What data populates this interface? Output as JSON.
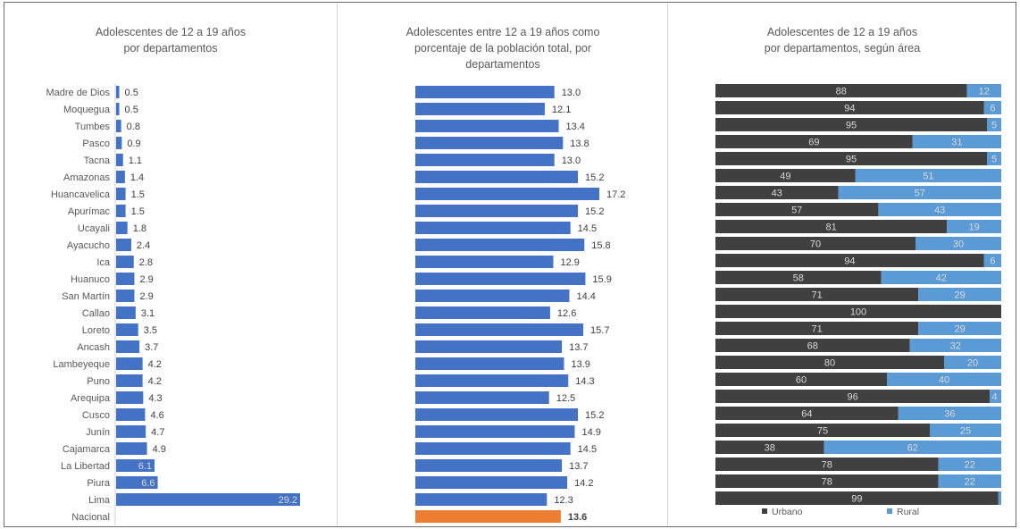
{
  "chart_data": [
    {
      "type": "bar",
      "orientation": "horizontal",
      "title": "Adolescentes de 12 a 19 años\npor departamentos",
      "categories": [
        "Madre de Dios",
        "Moquegua",
        "Tumbes",
        "Pasco",
        "Tacna",
        "Amazonas",
        "Huancavelica",
        "Apurímac",
        "Ucayali",
        "Ayacucho",
        "Ica",
        "Huanuco",
        "San Martín",
        "Callao",
        "Loreto",
        "Ancash",
        "Lambeyeque",
        "Puno",
        "Arequipa",
        "Cusco",
        "Junín",
        "Cajamarca",
        "La Libertad",
        "Piura",
        "Lima",
        "Nacional"
      ],
      "values": [
        0.5,
        0.5,
        0.8,
        0.9,
        1.1,
        1.4,
        1.5,
        1.5,
        1.8,
        2.4,
        2.8,
        2.9,
        2.9,
        3.1,
        3.5,
        3.7,
        4.2,
        4.2,
        4.3,
        4.6,
        4.7,
        4.9,
        6.1,
        6.6,
        29.2,
        null
      ],
      "labels": [
        "0.5",
        "0.5",
        "0.8",
        "0.9",
        "1.1",
        "1.4",
        "1.5",
        "1.5",
        "1.8",
        "2.4",
        "2.8",
        "2.9",
        "2.9",
        "3.1",
        "3.5",
        "3.7",
        "4.2",
        "4.2",
        "4.3",
        "4.6",
        "4.7",
        "4.9",
        "6.1",
        "6.6",
        "29.2",
        ""
      ],
      "xlim": [
        0,
        29.2
      ],
      "colors": {
        "bar": "#4472c4"
      },
      "grid": false
    },
    {
      "type": "bar",
      "orientation": "horizontal",
      "title": "Adolescentes entre 12 a 19 años como\nporcentaje de la población total, por\ndepartamentos",
      "values": [
        13.0,
        12.1,
        13.4,
        13.8,
        13.0,
        15.2,
        17.2,
        15.2,
        14.5,
        15.8,
        12.9,
        15.9,
        14.4,
        12.6,
        15.7,
        13.7,
        13.9,
        14.3,
        12.5,
        15.2,
        14.9,
        14.5,
        13.7,
        14.2,
        12.3,
        13.6
      ],
      "labels": [
        "13.0",
        "12.1",
        "13.4",
        "13.8",
        "13.0",
        "15.2",
        "17.2",
        "15.2",
        "14.5",
        "15.8",
        "12.9",
        "15.9",
        "14.4",
        "12.6",
        "15.7",
        "13.7",
        "13.9",
        "14.3",
        "12.5",
        "15.2",
        "14.9",
        "14.5",
        "13.7",
        "14.2",
        "12.3",
        "13.6"
      ],
      "highlight_index": 25,
      "xlim": [
        0,
        17.2
      ],
      "colors": {
        "bar": "#4472c4",
        "highlight": "#ed7d31"
      },
      "grid": false
    },
    {
      "type": "bar",
      "orientation": "horizontal",
      "stacked": true,
      "percent": true,
      "title": "Adolescentes de 12 a 19 años\npor departamentos, según área",
      "series": [
        {
          "name": "Urbano",
          "color": "#404040",
          "values": [
            88,
            94,
            95,
            69,
            95,
            49,
            43,
            57,
            81,
            70,
            94,
            58,
            71,
            100,
            71,
            68,
            80,
            60,
            96,
            64,
            75,
            38,
            78,
            78,
            99
          ]
        },
        {
          "name": "Rural",
          "color": "#5b9bd5",
          "values": [
            12,
            6,
            5,
            31,
            5,
            51,
            57,
            43,
            19,
            30,
            6,
            42,
            29,
            0,
            29,
            32,
            20,
            40,
            4,
            36,
            25,
            62,
            22,
            22,
            1
          ]
        }
      ],
      "labels": {
        "Urbano": [
          "88",
          "94",
          "95",
          "69",
          "95",
          "49",
          "43",
          "57",
          "81",
          "70",
          "94",
          "58",
          "71",
          "100",
          "71",
          "68",
          "80",
          "60",
          "96",
          "64",
          "75",
          "38",
          "78",
          "78",
          "99"
        ],
        "Rural": [
          "12",
          "6",
          "5",
          "31",
          "5",
          "51",
          "57",
          "43",
          "19",
          "30",
          "6",
          "42",
          "29",
          "",
          "29",
          "32",
          "20",
          "40",
          "4",
          "36",
          "25",
          "62",
          "22",
          "22",
          ""
        ]
      },
      "xlim": [
        0,
        100
      ],
      "legend": "bottom",
      "grid": false
    }
  ]
}
